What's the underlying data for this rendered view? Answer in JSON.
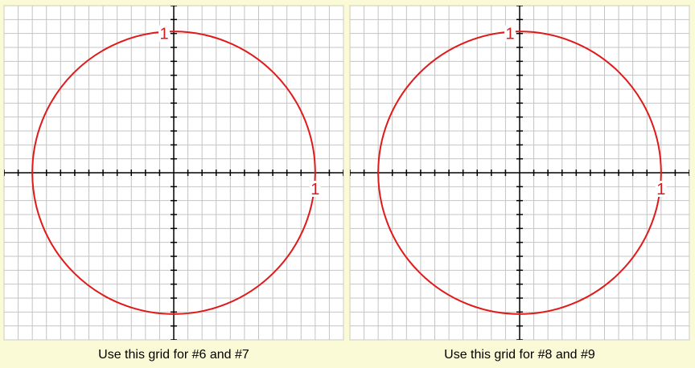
{
  "colors": {
    "background": "#fafad6",
    "panel": "#ffffff",
    "grid": "#c4c4c4",
    "axis": "#000000",
    "circle": "#e01a1a",
    "label": "#e01a1a"
  },
  "grids": [
    {
      "caption": "Use this grid for #6 and #7",
      "circle_radius": 1,
      "label_top": "1",
      "label_right": "1",
      "x_range": [
        -1.2,
        1.2
      ],
      "y_range": [
        -1.2,
        1.2
      ],
      "grid_divisions_per_unit": 10
    },
    {
      "caption": "Use this grid for #8 and #9",
      "circle_radius": 1,
      "label_top": "1",
      "label_right": "1",
      "x_range": [
        -1.2,
        1.2
      ],
      "y_range": [
        -1.2,
        1.2
      ],
      "grid_divisions_per_unit": 10
    }
  ]
}
